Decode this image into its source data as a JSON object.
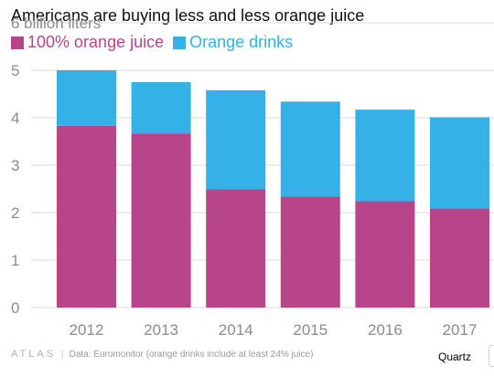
{
  "colors": {
    "juice": "#b8448a",
    "drinks": "#34b1e6",
    "grid": "#d9d9d9",
    "axis_text": "#8c8c8c"
  },
  "footer": {
    "brand": "ATLAS",
    "separator": "|",
    "source": "Data:  Euromonitor (orange drinks include at least 24% juice)",
    "publisher": "Quartz"
  },
  "chart_data": {
    "type": "bar",
    "stacked": true,
    "title": "Americans are buying less and less orange juice",
    "ylabel": "",
    "xlabel": "",
    "y_unit_label": "6 billion liters",
    "categories": [
      "2012",
      "2013",
      "2014",
      "2015",
      "2016",
      "2017"
    ],
    "series": [
      {
        "name": "100% orange juice",
        "color": "#b8448a",
        "values": [
          3.83,
          3.67,
          2.49,
          2.34,
          2.24,
          2.09
        ]
      },
      {
        "name": "Orange drinks",
        "color": "#34b1e6",
        "values": [
          1.17,
          1.08,
          2.09,
          2.0,
          1.93,
          1.92
        ]
      }
    ],
    "ylim": [
      0,
      6
    ],
    "yticks": [
      "0",
      "1",
      "2",
      "3",
      "4",
      "5"
    ],
    "grid": true,
    "legend_position": "top-left"
  }
}
